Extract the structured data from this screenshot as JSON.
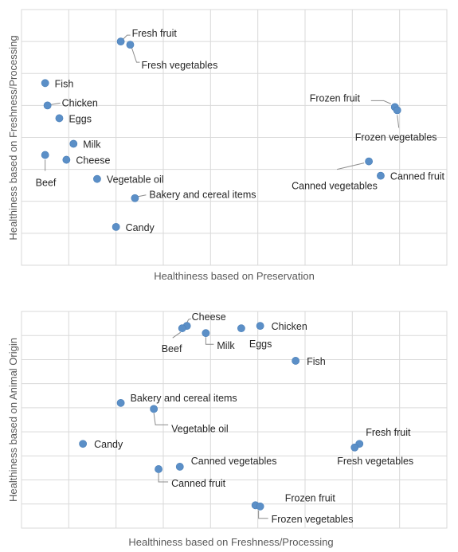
{
  "chart_data": [
    {
      "type": "scatter",
      "xlabel": "Healthiness based on Preservation",
      "ylabel": "Healthiness based on Freshness/Processing",
      "xlim": [
        0,
        9
      ],
      "ylim": [
        0,
        8
      ],
      "grid": true,
      "points": [
        {
          "label": "Fresh fruit",
          "x": 2.1,
          "y": 7.0
        },
        {
          "label": "Fresh vegetables",
          "x": 2.3,
          "y": 6.9
        },
        {
          "label": "Fish",
          "x": 0.5,
          "y": 5.7
        },
        {
          "label": "Chicken",
          "x": 0.55,
          "y": 5.0
        },
        {
          "label": "Eggs",
          "x": 0.8,
          "y": 4.6
        },
        {
          "label": "Milk",
          "x": 1.1,
          "y": 3.8
        },
        {
          "label": "Cheese",
          "x": 0.95,
          "y": 3.3
        },
        {
          "label": "Beef",
          "x": 0.5,
          "y": 3.45
        },
        {
          "label": "Vegetable oil",
          "x": 1.6,
          "y": 2.7
        },
        {
          "label": "Bakery and cereal items",
          "x": 2.4,
          "y": 2.1
        },
        {
          "label": "Candy",
          "x": 2.0,
          "y": 1.2
        },
        {
          "label": "Frozen fruit",
          "x": 7.9,
          "y": 4.95
        },
        {
          "label": "Frozen vegetables",
          "x": 7.95,
          "y": 4.85
        },
        {
          "label": "Canned vegetables",
          "x": 7.35,
          "y": 3.25
        },
        {
          "label": "Canned fruit",
          "x": 7.6,
          "y": 2.8
        }
      ]
    },
    {
      "type": "scatter",
      "xlabel": "Healthiness based on Freshness/Processing",
      "ylabel": "Healthiness based on Animal Origin",
      "xlim": [
        0,
        9
      ],
      "ylim": [
        0,
        9
      ],
      "grid": true,
      "points": [
        {
          "label": "Cheese",
          "x": 3.5,
          "y": 8.4
        },
        {
          "label": "Beef",
          "x": 3.4,
          "y": 8.3
        },
        {
          "label": "Milk",
          "x": 3.9,
          "y": 8.1
        },
        {
          "label": "Eggs",
          "x": 4.65,
          "y": 8.3
        },
        {
          "label": "Chicken",
          "x": 5.05,
          "y": 8.4
        },
        {
          "label": "Fish",
          "x": 5.8,
          "y": 6.95
        },
        {
          "label": "Bakery and cereal items",
          "x": 2.1,
          "y": 5.2
        },
        {
          "label": "Vegetable oil",
          "x": 2.8,
          "y": 4.95
        },
        {
          "label": "Candy",
          "x": 1.3,
          "y": 3.5
        },
        {
          "label": "Fresh fruit",
          "x": 7.15,
          "y": 3.5
        },
        {
          "label": "Fresh vegetables",
          "x": 7.05,
          "y": 3.35
        },
        {
          "label": "Canned vegetables",
          "x": 3.35,
          "y": 2.55
        },
        {
          "label": "Canned fruit",
          "x": 2.9,
          "y": 2.45
        },
        {
          "label": "Frozen fruit",
          "x": 4.95,
          "y": 0.95
        },
        {
          "label": "Frozen vegetables",
          "x": 5.05,
          "y": 0.9
        }
      ]
    }
  ]
}
